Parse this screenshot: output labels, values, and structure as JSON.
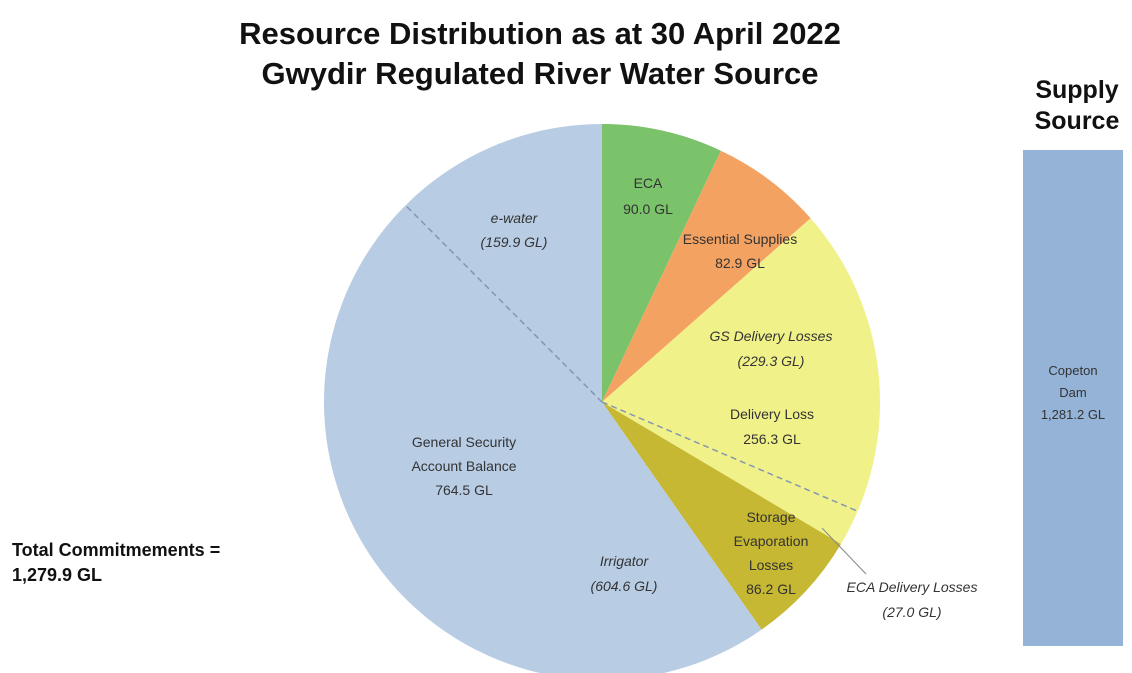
{
  "chart_data": {
    "type": "pie",
    "title": "Resource Distribution as at 30 April 2022",
    "subtitle": "Gwydir Regulated River Water Source",
    "slices": [
      {
        "label": "ECA",
        "value": 90.0,
        "value_text": "90.0 GL",
        "color": "#7ac36a"
      },
      {
        "label": "Essential Supplies",
        "value": 82.9,
        "value_text": "82.9 GL",
        "color": "#f4a261"
      },
      {
        "label": "Delivery Loss",
        "value": 256.3,
        "value_text": "256.3 GL",
        "color": "#f1f18a"
      },
      {
        "label": "Storage Evaporation Losses",
        "label_lines": [
          "Storage",
          "Evaporation",
          "Losses"
        ],
        "value": 86.2,
        "value_text": "86.2 GL",
        "color": "#c6b832"
      },
      {
        "label": "General Security Account Balance",
        "label_lines": [
          "General Security",
          "Account Balance"
        ],
        "value": 764.5,
        "value_text": "764.5 GL",
        "color": "#b8cce4"
      }
    ],
    "sub_annotations": [
      {
        "label": "e-water",
        "value_text": "(159.9 GL)",
        "value": 159.9
      },
      {
        "label": "Irrigator",
        "value_text": "(604.6 GL)",
        "value": 604.6
      },
      {
        "label": "GS Delivery Losses",
        "value_text": "(229.3 GL)",
        "value": 229.3
      },
      {
        "label": "ECA Delivery Losses",
        "value_text": "(27.0 GL)",
        "value": 27.0
      }
    ],
    "supply": {
      "header": [
        "Supply",
        "Source"
      ],
      "label_lines": [
        "Copeton",
        "Dam",
        "1,281.2 GL"
      ],
      "value": 1281.2,
      "color": "#95b3d7"
    },
    "total": {
      "label": "Total Commitmements =",
      "value_text": "1,279.9 GL",
      "value": 1279.9
    }
  }
}
